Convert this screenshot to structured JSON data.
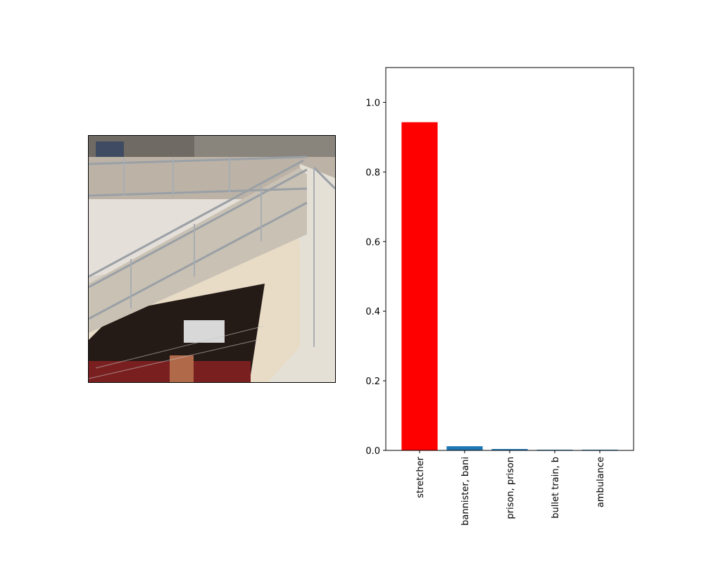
{
  "photo": {
    "subject": "staircase-with-metal-railings"
  },
  "chart_data": {
    "type": "bar",
    "categories": [
      "stretcher",
      "bannister, bani",
      "prison, prison",
      "bullet train, b",
      "ambulance"
    ],
    "values": [
      0.943,
      0.012,
      0.004,
      0.002,
      0.002
    ],
    "colors": [
      "#ff0000",
      "#1f77b4",
      "#1f77b4",
      "#1f77b4",
      "#1f77b4"
    ],
    "ylim": [
      0,
      1.1
    ],
    "yticks": [
      0.0,
      0.2,
      0.4,
      0.6,
      0.8,
      1.0
    ],
    "ytick_labels": [
      "0.0",
      "0.2",
      "0.4",
      "0.6",
      "0.8",
      "1.0"
    ],
    "title": "",
    "xlabel": "",
    "ylabel": "",
    "grid": false,
    "legend": "none"
  }
}
